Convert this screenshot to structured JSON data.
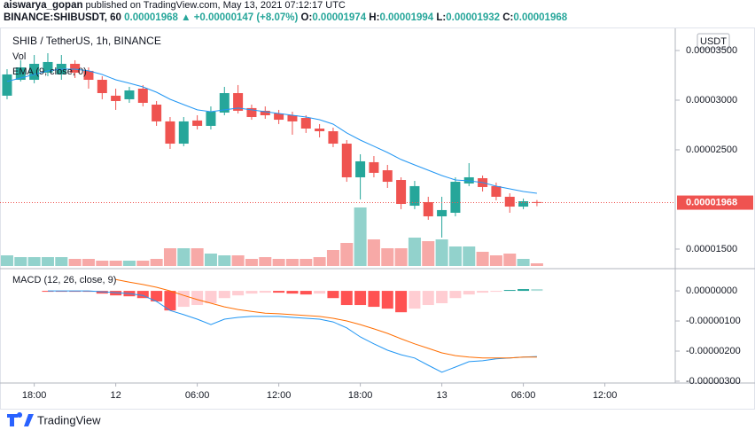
{
  "header": {
    "author": "aiswarya_gopan",
    "published": "published on TradingView.com, May 13, 2021 07:12:17 UTC",
    "symbol": "BINANCE:SHIBUSDT, 60",
    "last": "0.00001968",
    "arrow": "▲",
    "change": "+0.00000147 (+8.07%)",
    "o_label": "O:",
    "o": "0.00001974",
    "h_label": "H:",
    "h": "0.00001994",
    "l_label": "L:",
    "l": "0.00001932",
    "c_label": "C:",
    "c": "0.00001968"
  },
  "chart_data": [
    {
      "type": "candlestick",
      "title": "SHIB / TetherUS, 1h, BINANCE",
      "currency": "USDT",
      "xlim": [
        -0.52,
        49.18
      ],
      "xticks": [
        {
          "value": 2,
          "label": "18:00"
        },
        {
          "value": 8,
          "label": "12"
        },
        {
          "value": 14,
          "label": "06:00"
        },
        {
          "value": 20,
          "label": "12:00"
        },
        {
          "value": 26,
          "label": "18:00"
        },
        {
          "value": 32,
          "label": "13"
        },
        {
          "value": 38,
          "label": "06:00"
        },
        {
          "value": 44,
          "label": "12:00"
        }
      ],
      "ylim": [
        1.33e-05,
        3.723e-05
      ],
      "yticks": [
        {
          "value": 3.5e-05,
          "label": "0.00003500"
        },
        {
          "value": 3e-05,
          "label": "0.00003000"
        },
        {
          "value": 2.5e-05,
          "label": "0.00002500"
        },
        {
          "value": 1.5e-05,
          "label": "0.00001500"
        }
      ],
      "up_color": "#26a69a",
      "down_color": "#ef5350",
      "open": [
        3.045e-05,
        3.205e-05,
        3.205e-05,
        3.277e-05,
        3.259e-05,
        3.366e-05,
        3.295e-05,
        3.205e-05,
        3.045e-05,
        3.009e-05,
        3.116e-05,
        2.955e-05,
        2.786e-05,
        2.562e-05,
        2.795e-05,
        2.741e-05,
        2.875e-05,
        3.071e-05,
        2.92e-05,
        2.893e-05,
        2.866e-05,
        2.848e-05,
        2.821e-05,
        2.714e-05,
        2.687e-05,
        2.562e-05,
        2.223e-05,
        2.375e-05,
        2.294e-05,
        2.196e-05,
        1.937e-05,
        1.973e-05,
        1.83e-05,
        1.866e-05,
        2.161e-05,
        2.214e-05,
        2.134e-05,
        2.027e-05,
        1.928e-05,
        1.974e-05
      ],
      "high": [
        3.312e-05,
        3.402e-05,
        3.455e-05,
        3.473e-05,
        3.455e-05,
        3.402e-05,
        3.33e-05,
        3.241e-05,
        3.116e-05,
        3.134e-05,
        3.152e-05,
        2.991e-05,
        2.83e-05,
        2.83e-05,
        2.848e-05,
        2.937e-05,
        3.134e-05,
        3.152e-05,
        2.955e-05,
        2.937e-05,
        2.902e-05,
        2.884e-05,
        2.848e-05,
        2.759e-05,
        2.723e-05,
        2.598e-05,
        2.455e-05,
        2.437e-05,
        2.348e-05,
        2.223e-05,
        2.187e-05,
        2.027e-05,
        2.027e-05,
        2.223e-05,
        2.366e-05,
        2.241e-05,
        2.17e-05,
        2.062e-05,
        2.009e-05,
        1.994e-05
      ],
      "low": [
        3.009e-05,
        3.188e-05,
        3.17e-05,
        3.241e-05,
        3.205e-05,
        3.223e-05,
        3.116e-05,
        3.009e-05,
        2.902e-05,
        2.973e-05,
        2.937e-05,
        2.741e-05,
        2.509e-05,
        2.536e-05,
        2.705e-05,
        2.705e-05,
        2.848e-05,
        2.866e-05,
        2.803e-05,
        2.812e-05,
        2.759e-05,
        2.652e-05,
        2.67e-05,
        2.625e-05,
        2.527e-05,
        2.178e-05,
        2e-05,
        2.223e-05,
        2.116e-05,
        1.902e-05,
        1.902e-05,
        1.795e-05,
        1.616e-05,
        1.83e-05,
        2.134e-05,
        2.08e-05,
        1.991e-05,
        1.866e-05,
        1.902e-05,
        1.932e-05
      ],
      "close": [
        3.259e-05,
        3.33e-05,
        3.366e-05,
        3.384e-05,
        3.366e-05,
        3.277e-05,
        3.205e-05,
        3.071e-05,
        2.991e-05,
        3.098e-05,
        2.973e-05,
        2.786e-05,
        2.562e-05,
        2.786e-05,
        2.741e-05,
        2.884e-05,
        3.071e-05,
        2.893e-05,
        2.83e-05,
        2.848e-05,
        2.803e-05,
        2.786e-05,
        2.714e-05,
        2.687e-05,
        2.562e-05,
        2.223e-05,
        2.384e-05,
        2.268e-05,
        2.178e-05,
        1.955e-05,
        2.134e-05,
        1.83e-05,
        1.893e-05,
        2.178e-05,
        2.223e-05,
        2.125e-05,
        2.027e-05,
        1.928e-05,
        1.982e-05,
        1.968e-05
      ],
      "last_price_label": "0.00001968",
      "ema": {
        "name": "EMA (9, close, 0)",
        "color": "#2196f3",
        "values": [
          3.188e-05,
          3.223e-05,
          3.259e-05,
          3.295e-05,
          3.312e-05,
          3.312e-05,
          3.295e-05,
          3.259e-05,
          3.205e-05,
          3.17e-05,
          3.134e-05,
          3.08e-05,
          3.009e-05,
          2.955e-05,
          2.902e-05,
          2.884e-05,
          2.902e-05,
          2.92e-05,
          2.902e-05,
          2.884e-05,
          2.866e-05,
          2.848e-05,
          2.83e-05,
          2.803e-05,
          2.759e-05,
          2.67e-05,
          2.598e-05,
          2.536e-05,
          2.473e-05,
          2.402e-05,
          2.348e-05,
          2.294e-05,
          2.241e-05,
          2.196e-05,
          2.187e-05,
          2.17e-05,
          2.134e-05,
          2.107e-05,
          2.08e-05,
          2.062e-05
        ]
      },
      "volume": {
        "name": "Vol",
        "lim": [
          0,
          100
        ],
        "values": [
          12,
          10,
          10,
          10,
          10,
          8,
          8,
          6,
          6,
          6,
          6,
          8,
          20,
          20,
          20,
          14,
          12,
          12,
          8,
          10,
          8,
          8,
          8,
          10,
          18,
          26,
          66,
          30,
          20,
          20,
          32,
          28,
          30,
          22,
          22,
          16,
          12,
          14,
          8,
          3
        ]
      }
    },
    {
      "type": "macd",
      "title": "MACD (12, 26, close, 9)",
      "ylim": [
        -3.06e-06,
        6.5e-07
      ],
      "yticks": [
        {
          "value": 0,
          "label": "0.00000000"
        },
        {
          "value": -1e-06,
          "label": "-0.00000100"
        },
        {
          "value": -2e-06,
          "label": "-0.00000200"
        },
        {
          "value": -3e-06,
          "label": "-0.00000300"
        }
      ],
      "histogram": {
        "colors": {
          "fall_below": "#ff5252",
          "rise_below": "#ffcdd2",
          "rise_above": "#26a69a",
          "fall_above": "#b2dfdb"
        },
        "values": [
          null,
          null,
          null,
          -3e-08,
          -3e-08,
          -3e-08,
          -3e-08,
          -9e-08,
          -1.5e-07,
          -1.8e-07,
          -2.4e-07,
          -3.5e-07,
          -6.5e-07,
          -5.3e-07,
          -4.7e-07,
          -4.1e-07,
          -2.4e-07,
          -1.5e-07,
          -9e-08,
          -6e-08,
          -6e-08,
          -9e-08,
          -1.2e-07,
          -9e-08,
          -2.4e-07,
          -4.7e-07,
          -4.7e-07,
          -5.3e-07,
          -5.9e-07,
          -7.1e-07,
          -5.9e-07,
          -4.7e-07,
          -4.1e-07,
          -2.4e-07,
          -1.2e-07,
          -6e-08,
          -3e-08,
          3e-08,
          6e-08,
          6e-08
        ]
      },
      "macd": {
        "color": "#2196f3",
        "values": [
          null,
          null,
          null,
          0,
          0,
          0,
          0,
          -3e-08,
          -6e-08,
          -9e-08,
          -1.5e-07,
          -3.5e-07,
          -6.5e-07,
          -7.9e-07,
          -9.4e-07,
          -1.12e-06,
          -9.4e-07,
          -8.8e-07,
          -8.5e-07,
          -8.5e-07,
          -8.5e-07,
          -8.8e-07,
          -9.1e-07,
          -9.4e-07,
          -1.03e-06,
          -1.23e-06,
          -1.53e-06,
          -1.76e-06,
          -1.97e-06,
          -2.12e-06,
          -2.23e-06,
          -2.47e-06,
          -2.7e-06,
          -2.53e-06,
          -2.35e-06,
          -2.32e-06,
          -2.26e-06,
          -2.23e-06,
          -2.2e-06,
          -2.18e-06
        ]
      },
      "signal": {
        "color": "#ff6d00",
        "values": [
          null,
          null,
          null,
          null,
          null,
          null,
          null,
          null,
          3.8e-07,
          2.9e-07,
          2.1e-07,
          1.2e-07,
          0,
          -1.5e-07,
          -2.9e-07,
          -4.1e-07,
          -5.3e-07,
          -6.2e-07,
          -6.8e-07,
          -7.4e-07,
          -7.6e-07,
          -7.9e-07,
          -8.2e-07,
          -8.5e-07,
          -9.1e-07,
          -1e-06,
          -1.12e-06,
          -1.26e-06,
          -1.41e-06,
          -1.59e-06,
          -1.76e-06,
          -1.91e-06,
          -2.06e-06,
          -2.15e-06,
          -2.2e-06,
          -2.23e-06,
          -2.23e-06,
          -2.23e-06,
          -2.2e-06,
          -2.2e-06
        ]
      }
    }
  ],
  "footer": {
    "brand": "TradingView"
  }
}
